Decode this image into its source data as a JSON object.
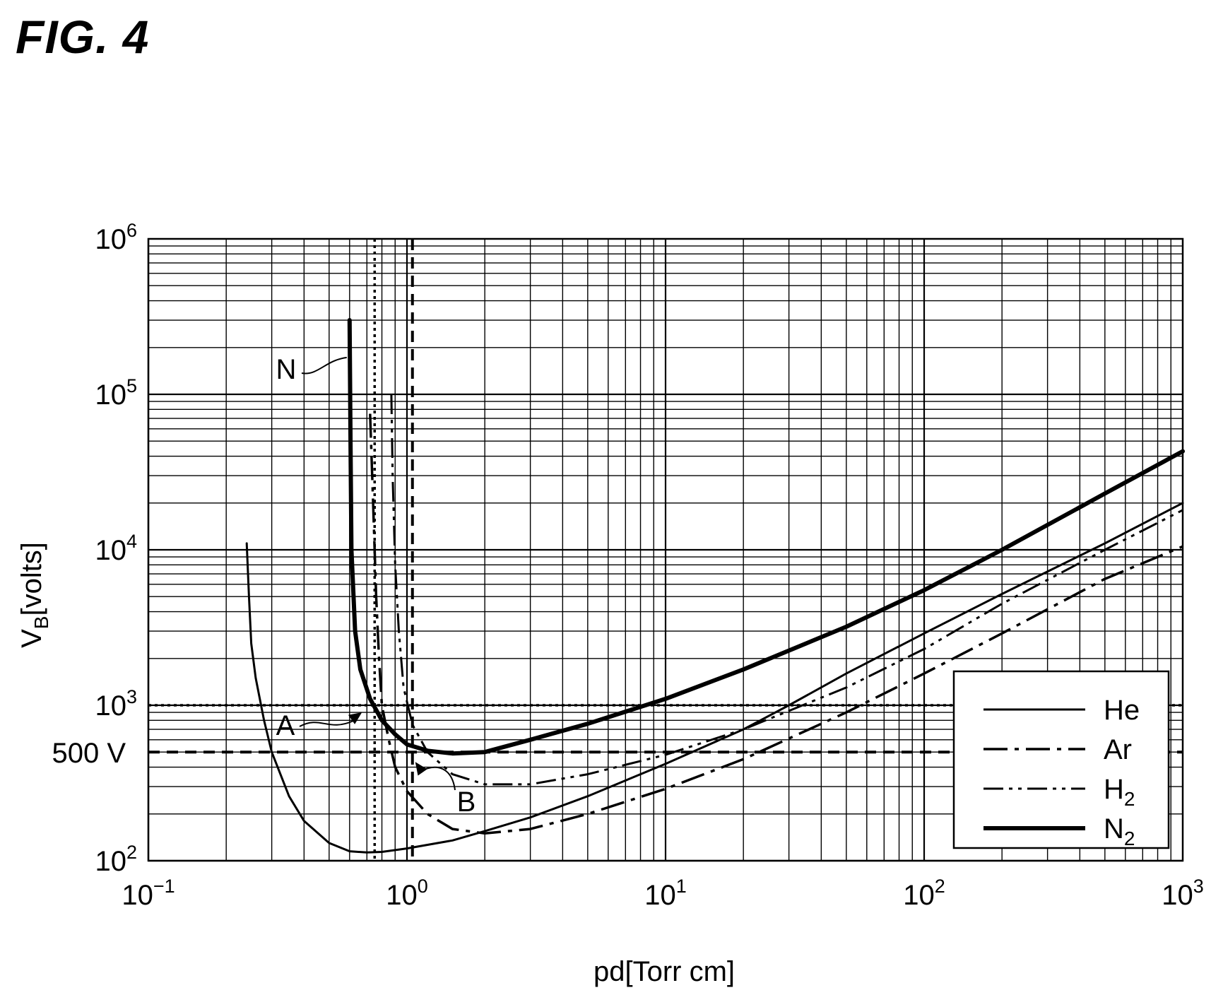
{
  "figure_title": "FIG. 4",
  "chart_data": {
    "type": "line",
    "xscale": "log",
    "yscale": "log",
    "xlim": [
      0.1,
      1000
    ],
    "ylim": [
      100,
      1000000
    ],
    "grid": true,
    "xlabel": "pd[Torr cm]",
    "ylabel": {
      "base": "V",
      "sub": "B",
      "rest": "[volts]"
    },
    "x_ticks": [
      {
        "base": "10",
        "exp": "−1",
        "value": 0.1
      },
      {
        "base": "10",
        "exp": "0",
        "value": 1
      },
      {
        "base": "10",
        "exp": "1",
        "value": 10
      },
      {
        "base": "10",
        "exp": "2",
        "value": 100
      },
      {
        "base": "10",
        "exp": "3",
        "value": 1000
      }
    ],
    "y_ticks": [
      {
        "base": "10",
        "exp": "2",
        "value": 100
      },
      {
        "base": "10",
        "exp": "3",
        "value": 1000
      },
      {
        "base": "10",
        "exp": "4",
        "value": 10000
      },
      {
        "base": "10",
        "exp": "5",
        "value": 100000
      },
      {
        "base": "10",
        "exp": "6",
        "value": 1000000
      }
    ],
    "y_extra_label": {
      "text": "500 V",
      "value": 500
    },
    "reference_lines": [
      {
        "orientation": "horizontal",
        "value": 1000,
        "style": "dotted"
      },
      {
        "orientation": "horizontal",
        "value": 500,
        "style": "dashed"
      },
      {
        "orientation": "vertical",
        "value": 0.75,
        "style": "dotted"
      },
      {
        "orientation": "vertical",
        "value": 1.05,
        "style": "dashed"
      }
    ],
    "legend": {
      "position": "bottom-right",
      "entries": [
        {
          "base": "He",
          "sub": "",
          "style": "solid"
        },
        {
          "base": "Ar",
          "sub": "",
          "style": "dash-dot"
        },
        {
          "base": "H",
          "sub": "2",
          "style": "dash-dot-dot"
        },
        {
          "base": "N",
          "sub": "2",
          "style": "thick-solid"
        }
      ]
    },
    "annotations": [
      {
        "text": "N",
        "target_x": 0.6,
        "target_y": 180000
      },
      {
        "text": "A",
        "target_x": 0.75,
        "target_y": 1000
      },
      {
        "text": "B",
        "target_x": 1.05,
        "target_y": 500
      }
    ],
    "series": [
      {
        "name": "He",
        "style": "solid",
        "points": [
          [
            0.24,
            11000
          ],
          [
            0.245,
            5000
          ],
          [
            0.25,
            2500
          ],
          [
            0.26,
            1500
          ],
          [
            0.28,
            800
          ],
          [
            0.3,
            500
          ],
          [
            0.35,
            260
          ],
          [
            0.4,
            180
          ],
          [
            0.5,
            130
          ],
          [
            0.6,
            115
          ],
          [
            0.7,
            113
          ],
          [
            0.8,
            114
          ],
          [
            1,
            120
          ],
          [
            1.5,
            135
          ],
          [
            2,
            155
          ],
          [
            3,
            190
          ],
          [
            5,
            260
          ],
          [
            10,
            420
          ],
          [
            20,
            700
          ],
          [
            30,
            1000
          ],
          [
            50,
            1600
          ],
          [
            100,
            2900
          ],
          [
            200,
            5200
          ],
          [
            500,
            11000
          ],
          [
            1000,
            20000
          ]
        ]
      },
      {
        "name": "Ar",
        "style": "dash-dot",
        "points": [
          [
            0.72,
            75000
          ],
          [
            0.74,
            20000
          ],
          [
            0.76,
            5000
          ],
          [
            0.78,
            2000
          ],
          [
            0.8,
            1000
          ],
          [
            0.85,
            600
          ],
          [
            0.9,
            400
          ],
          [
            1,
            280
          ],
          [
            1.2,
            200
          ],
          [
            1.5,
            160
          ],
          [
            2,
            150
          ],
          [
            3,
            160
          ],
          [
            5,
            200
          ],
          [
            10,
            290
          ],
          [
            20,
            450
          ],
          [
            50,
            900
          ],
          [
            100,
            1600
          ],
          [
            200,
            2900
          ],
          [
            500,
            6500
          ],
          [
            1000,
            10500
          ]
        ]
      },
      {
        "name": "H₂",
        "style": "dash-dot-dot",
        "points": [
          [
            0.87,
            100000
          ],
          [
            0.88,
            30000
          ],
          [
            0.9,
            8000
          ],
          [
            0.93,
            3000
          ],
          [
            0.97,
            1300
          ],
          [
            1.05,
            750
          ],
          [
            1.2,
            500
          ],
          [
            1.5,
            360
          ],
          [
            2,
            310
          ],
          [
            3,
            310
          ],
          [
            5,
            360
          ],
          [
            10,
            480
          ],
          [
            20,
            700
          ],
          [
            50,
            1300
          ],
          [
            100,
            2300
          ],
          [
            200,
            4500
          ],
          [
            500,
            10000
          ],
          [
            1000,
            18000
          ]
        ]
      },
      {
        "name": "N₂",
        "style": "thick-solid",
        "points": [
          [
            0.6,
            300000
          ],
          [
            0.605,
            50000
          ],
          [
            0.61,
            10000
          ],
          [
            0.63,
            3000
          ],
          [
            0.66,
            1700
          ],
          [
            0.72,
            1100
          ],
          [
            0.8,
            800
          ],
          [
            0.9,
            650
          ],
          [
            1,
            560
          ],
          [
            1.2,
            510
          ],
          [
            1.5,
            490
          ],
          [
            2,
            500
          ],
          [
            3,
            600
          ],
          [
            5,
            760
          ],
          [
            10,
            1100
          ],
          [
            20,
            1700
          ],
          [
            50,
            3200
          ],
          [
            100,
            5500
          ],
          [
            200,
            10000
          ],
          [
            500,
            23000
          ],
          [
            1000,
            43000
          ]
        ]
      }
    ]
  }
}
